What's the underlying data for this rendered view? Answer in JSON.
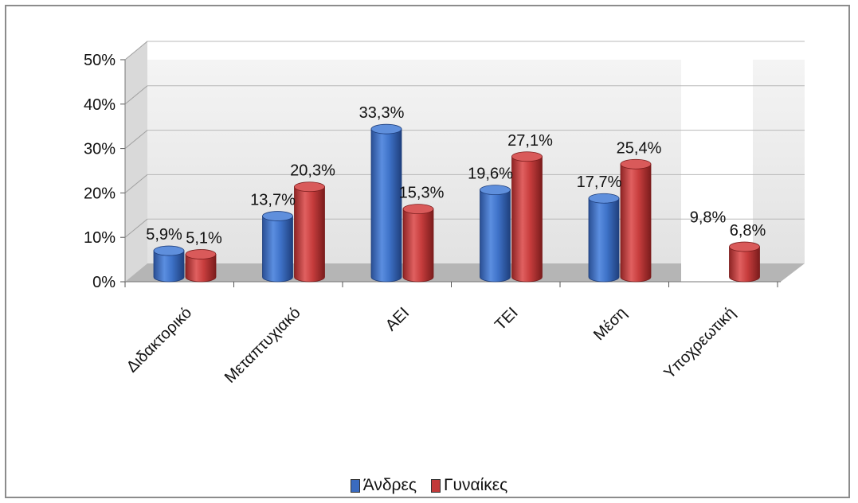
{
  "chart_data": {
    "type": "bar",
    "style": "3d-cylinder",
    "categories": [
      "Διδακτορικό",
      "Μεταπτυχιακό",
      "ΑΕΙ",
      "ΤΕΙ",
      "Μέση",
      "Υποχρεωτική"
    ],
    "series": [
      {
        "name": "Άνδρες",
        "color": "#3a6bc0",
        "values": [
          5.9,
          13.7,
          33.3,
          19.6,
          17.7,
          9.8
        ],
        "labels": [
          "5,9%",
          "13,7%",
          "33,3%",
          "19,6%",
          "17,7%",
          "9,8%"
        ]
      },
      {
        "name": "Γυναίκες",
        "color": "#c23a3a",
        "values": [
          5.1,
          20.3,
          15.3,
          27.1,
          25.4,
          6.8
        ],
        "labels": [
          "5,1%",
          "20,3%",
          "15,3%",
          "27,1%",
          "25,4%",
          "6,8%"
        ]
      }
    ],
    "y_ticks": [
      "0%",
      "10%",
      "20%",
      "30%",
      "40%",
      "50%"
    ],
    "ylim": [
      0,
      50
    ],
    "grid": true,
    "legend_position": "bottom"
  }
}
